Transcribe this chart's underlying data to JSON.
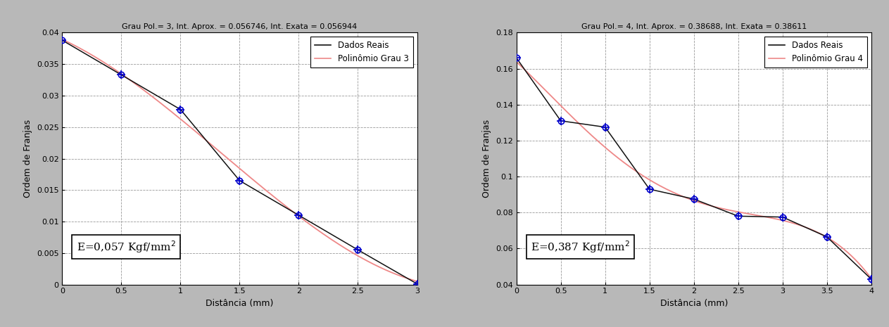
{
  "plot1": {
    "title": "Grau Pol.= 3, Int. Aprox. = 0.056746, Int. Exata = 0.056944",
    "xlabel": "Distância (mm)",
    "ylabel": "Ordem de Franjas",
    "xlim": [
      0,
      3
    ],
    "ylim": [
      0,
      0.04
    ],
    "xticks": [
      0,
      0.5,
      1.0,
      1.5,
      2.0,
      2.5,
      3.0
    ],
    "yticks": [
      0,
      0.005,
      0.01,
      0.015,
      0.02,
      0.025,
      0.03,
      0.035,
      0.04
    ],
    "real_x": [
      0,
      0.5,
      1.0,
      1.5,
      2.0,
      2.5,
      3.0
    ],
    "real_y": [
      0.0388,
      0.0333,
      0.0278,
      0.0165,
      0.011,
      0.0055,
      0.0001
    ],
    "poly_degree": 3,
    "annotation": "E=0,057 Kgf/mm$^{2}$",
    "legend_real": "Dados Reais",
    "legend_poly": "Polinômio Grau 3",
    "real_color": "#111111",
    "poly_color": "#ee8888",
    "marker_color": "#0000cc"
  },
  "plot2": {
    "title": "Grau Pol.= 4, Int. Aprox. = 0.38688, Int. Exata = 0.38611",
    "xlabel": "Distância (mm)",
    "ylabel": "Ordem de Franjas",
    "xlim": [
      0,
      4
    ],
    "ylim": [
      0.04,
      0.18
    ],
    "xticks": [
      0,
      0.5,
      1.0,
      1.5,
      2.0,
      2.5,
      3.0,
      3.5,
      4.0
    ],
    "yticks": [
      0.04,
      0.06,
      0.08,
      0.1,
      0.12,
      0.14,
      0.16,
      0.18
    ],
    "real_x": [
      0,
      0.5,
      1.0,
      1.5,
      2.0,
      2.5,
      3.0,
      3.5,
      4.0
    ],
    "real_y": [
      0.166,
      0.131,
      0.1275,
      0.093,
      0.0875,
      0.078,
      0.0775,
      0.0665,
      0.043
    ],
    "poly_degree": 4,
    "annotation": "E=0,387 Kgf/mm$^{2}$",
    "legend_real": "Dados Reais",
    "legend_poly": "Polinômio Grau 4",
    "real_color": "#111111",
    "poly_color": "#ee8888",
    "marker_color": "#0000cc"
  },
  "bg_color": "#b8b8b8",
  "fig_width": 12.63,
  "fig_height": 4.65
}
